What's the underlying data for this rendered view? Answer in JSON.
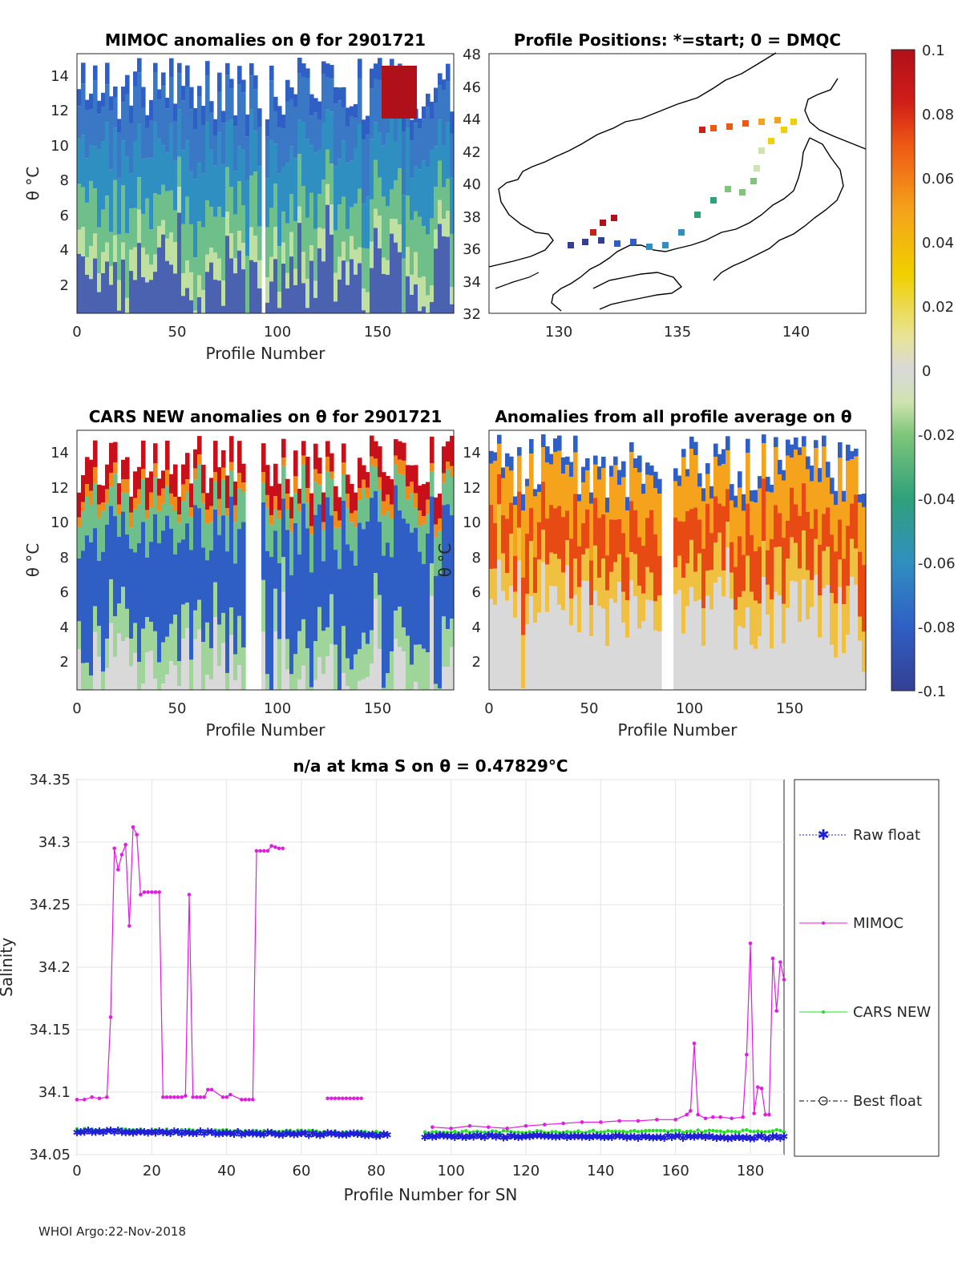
{
  "footer": "WHOI Argo:22-Nov-2018",
  "panels": {
    "mimoc": {
      "title": "MIMOC anomalies on θ  for 2901721",
      "xlabel": "Profile Number",
      "ylabel": "θ °C",
      "xticks": [
        "0",
        "50",
        "100",
        "150"
      ],
      "yticks": [
        "2",
        "4",
        "6",
        "8",
        "10",
        "12",
        "14"
      ]
    },
    "positions": {
      "title": "Profile Positions: *=start; 0 = DMQC",
      "xticks": [
        "130",
        "135",
        "140"
      ],
      "yticks": [
        "32",
        "34",
        "36",
        "38",
        "40",
        "42",
        "44",
        "46",
        "48"
      ]
    },
    "cars": {
      "title": "CARS NEW anomalies on θ for 2901721",
      "xlabel": "Profile Number",
      "ylabel": "θ °C",
      "xticks": [
        "0",
        "50",
        "100",
        "150"
      ],
      "yticks": [
        "2",
        "4",
        "6",
        "8",
        "10",
        "12",
        "14"
      ]
    },
    "avg": {
      "title": "Anomalies from all profile average on θ",
      "xlabel": "Profile Number",
      "ylabel": "θ °C",
      "xticks": [
        "0",
        "50",
        "100",
        "150"
      ],
      "yticks": [
        "2",
        "4",
        "6",
        "8",
        "10",
        "12",
        "14"
      ]
    }
  },
  "colorbar": {
    "ticks": [
      "0.1",
      "0.08",
      "0.06",
      "0.04",
      "0.02",
      "0",
      "-0.02",
      "-0.04",
      "-0.06",
      "-0.08",
      "-0.1"
    ],
    "range": [
      -0.1,
      0.1
    ]
  },
  "chart_data": {
    "type": "line",
    "title": "n/a at kma S on θ = 0.47829°C",
    "xlabel": "Profile Number for SN",
    "ylabel": "Salinity",
    "xlim": [
      0,
      189
    ],
    "ylim": [
      34.05,
      34.35
    ],
    "xticks": [
      "0",
      "20",
      "40",
      "60",
      "80",
      "100",
      "120",
      "140",
      "160",
      "180"
    ],
    "yticks": [
      "34.35",
      "34.3",
      "34.25",
      "34.2",
      "34.15",
      "34.1",
      "34.05"
    ],
    "series": [
      {
        "name": "Raw float",
        "color": "#1f1fd8",
        "style": "dotted-star",
        "segments": [
          {
            "x_start": 0,
            "x_end": 83,
            "y_start": 34.069,
            "y_end": 34.066
          },
          {
            "x_start": 93,
            "x_end": 189,
            "y_start": 34.065,
            "y_end": 34.064
          }
        ]
      },
      {
        "name": "MIMOC",
        "color": "#e01ee0",
        "style": "solid-dot",
        "points": [
          [
            0,
            34.094
          ],
          [
            2,
            34.094
          ],
          [
            4,
            34.096
          ],
          [
            6,
            34.095
          ],
          [
            8,
            34.096
          ],
          [
            9,
            34.16
          ],
          [
            10,
            34.295
          ],
          [
            11,
            34.278
          ],
          [
            12,
            34.29
          ],
          [
            13,
            34.298
          ],
          [
            14,
            34.233
          ],
          [
            15,
            34.312
          ],
          [
            16,
            34.306
          ],
          [
            17,
            34.258
          ],
          [
            18,
            34.26
          ],
          [
            19,
            34.26
          ],
          [
            20,
            34.26
          ],
          [
            21,
            34.26
          ],
          [
            22,
            34.26
          ],
          [
            23,
            34.096
          ],
          [
            24,
            34.096
          ],
          [
            25,
            34.096
          ],
          [
            26,
            34.096
          ],
          [
            27,
            34.096
          ],
          [
            28,
            34.096
          ],
          [
            29,
            34.097
          ],
          [
            30,
            34.258
          ],
          [
            31,
            34.096
          ],
          [
            32,
            34.096
          ],
          [
            33,
            34.096
          ],
          [
            34,
            34.096
          ],
          [
            35,
            34.102
          ],
          [
            36,
            34.102
          ],
          [
            39,
            34.096
          ],
          [
            40,
            34.096
          ],
          [
            41,
            34.098
          ],
          [
            44,
            34.094
          ],
          [
            45,
            34.094
          ],
          [
            46,
            34.094
          ],
          [
            47,
            34.094
          ],
          [
            48,
            34.293
          ],
          [
            49,
            34.293
          ],
          [
            50,
            34.293
          ],
          [
            51,
            34.293
          ],
          [
            52,
            34.297
          ],
          [
            53,
            34.296
          ],
          [
            54,
            34.295
          ],
          [
            55,
            34.295
          ],
          [
            67,
            34.095
          ],
          [
            68,
            34.095
          ],
          [
            69,
            34.095
          ],
          [
            70,
            34.095
          ],
          [
            71,
            34.095
          ],
          [
            72,
            34.095
          ],
          [
            73,
            34.095
          ],
          [
            74,
            34.095
          ],
          [
            75,
            34.095
          ],
          [
            76,
            34.095
          ],
          [
            95,
            34.072
          ],
          [
            100,
            34.071
          ],
          [
            105,
            34.073
          ],
          [
            110,
            34.072
          ],
          [
            115,
            34.071
          ],
          [
            120,
            34.073
          ],
          [
            125,
            34.074
          ],
          [
            130,
            34.075
          ],
          [
            135,
            34.076
          ],
          [
            140,
            34.076
          ],
          [
            145,
            34.077
          ],
          [
            150,
            34.077
          ],
          [
            155,
            34.078
          ],
          [
            160,
            34.078
          ],
          [
            163,
            34.082
          ],
          [
            164,
            34.085
          ],
          [
            165,
            34.139
          ],
          [
            166,
            34.082
          ],
          [
            168,
            34.079
          ],
          [
            170,
            34.08
          ],
          [
            172,
            34.08
          ],
          [
            175,
            34.079
          ],
          [
            178,
            34.08
          ],
          [
            179,
            34.13
          ],
          [
            180,
            34.219
          ],
          [
            181,
            34.083
          ],
          [
            182,
            34.104
          ],
          [
            183,
            34.103
          ],
          [
            184,
            34.082
          ],
          [
            185,
            34.082
          ],
          [
            186,
            34.207
          ],
          [
            187,
            34.165
          ],
          [
            188,
            34.204
          ],
          [
            189,
            34.19
          ]
        ]
      },
      {
        "name": "CARS NEW",
        "color": "#22e022",
        "style": "solid-dot",
        "segments": [
          {
            "x_start": 0,
            "x_end": 82,
            "y_start": 34.07,
            "y_end": 34.068
          },
          {
            "x_start": 93,
            "x_end": 189,
            "y_start": 34.068,
            "y_end": 34.069
          }
        ]
      },
      {
        "name": "Best float",
        "color": "#000000",
        "style": "dashdot-circle",
        "points": []
      }
    ]
  }
}
